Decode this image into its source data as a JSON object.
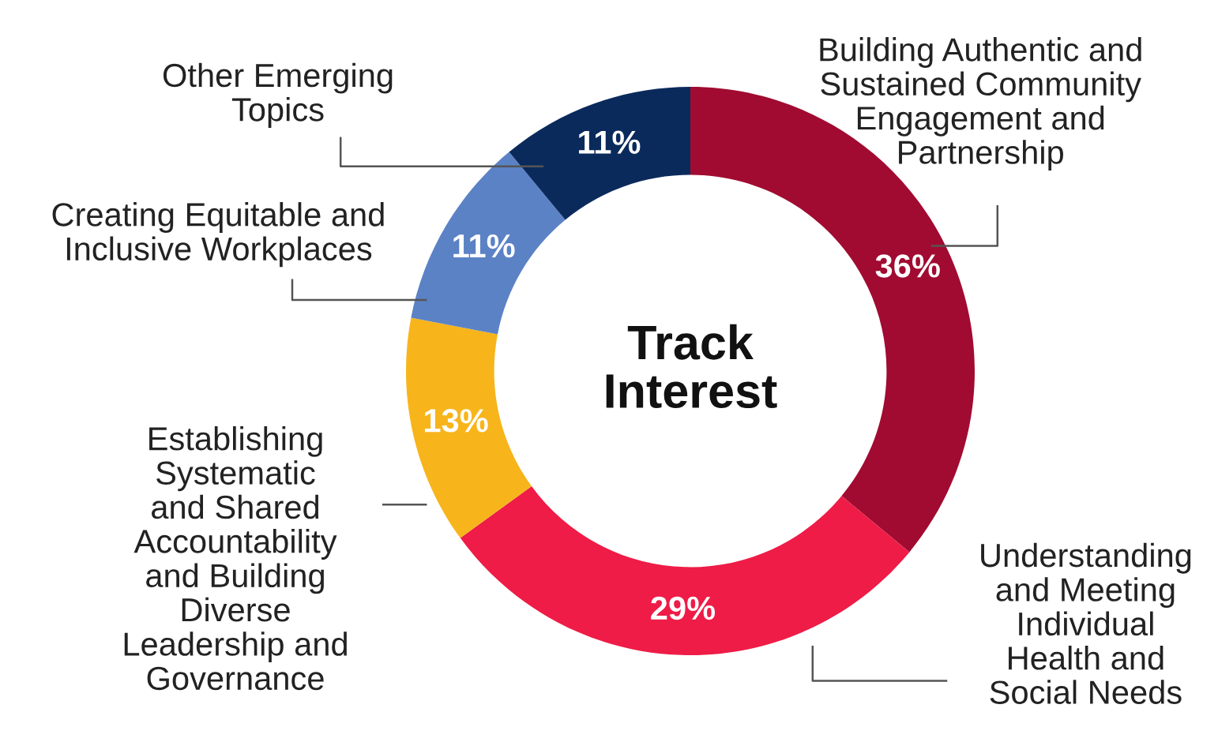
{
  "chart_data": {
    "type": "donut",
    "title": "Track\nInterest",
    "categories": [
      "Building Authentic and\nSustained Community\nEngagement and\nPartnership",
      "Understanding\nand Meeting\nIndividual\nHealth and\nSocial Needs",
      "Establishing\nSystematic\nand Shared\nAccountability\nand Building\nDiverse\nLeadership and\nGovernance",
      "Creating Equitable and\nInclusive Workplaces",
      "Other Emerging\nTopics"
    ],
    "values": [
      36,
      29,
      13,
      11,
      11
    ],
    "value_labels": [
      "36%",
      "29%",
      "13%",
      "11%",
      "11%"
    ],
    "colors": [
      "#a10b31",
      "#ee1c47",
      "#f7b51b",
      "#5b82c5",
      "#0b2a5c"
    ],
    "legend": false
  }
}
